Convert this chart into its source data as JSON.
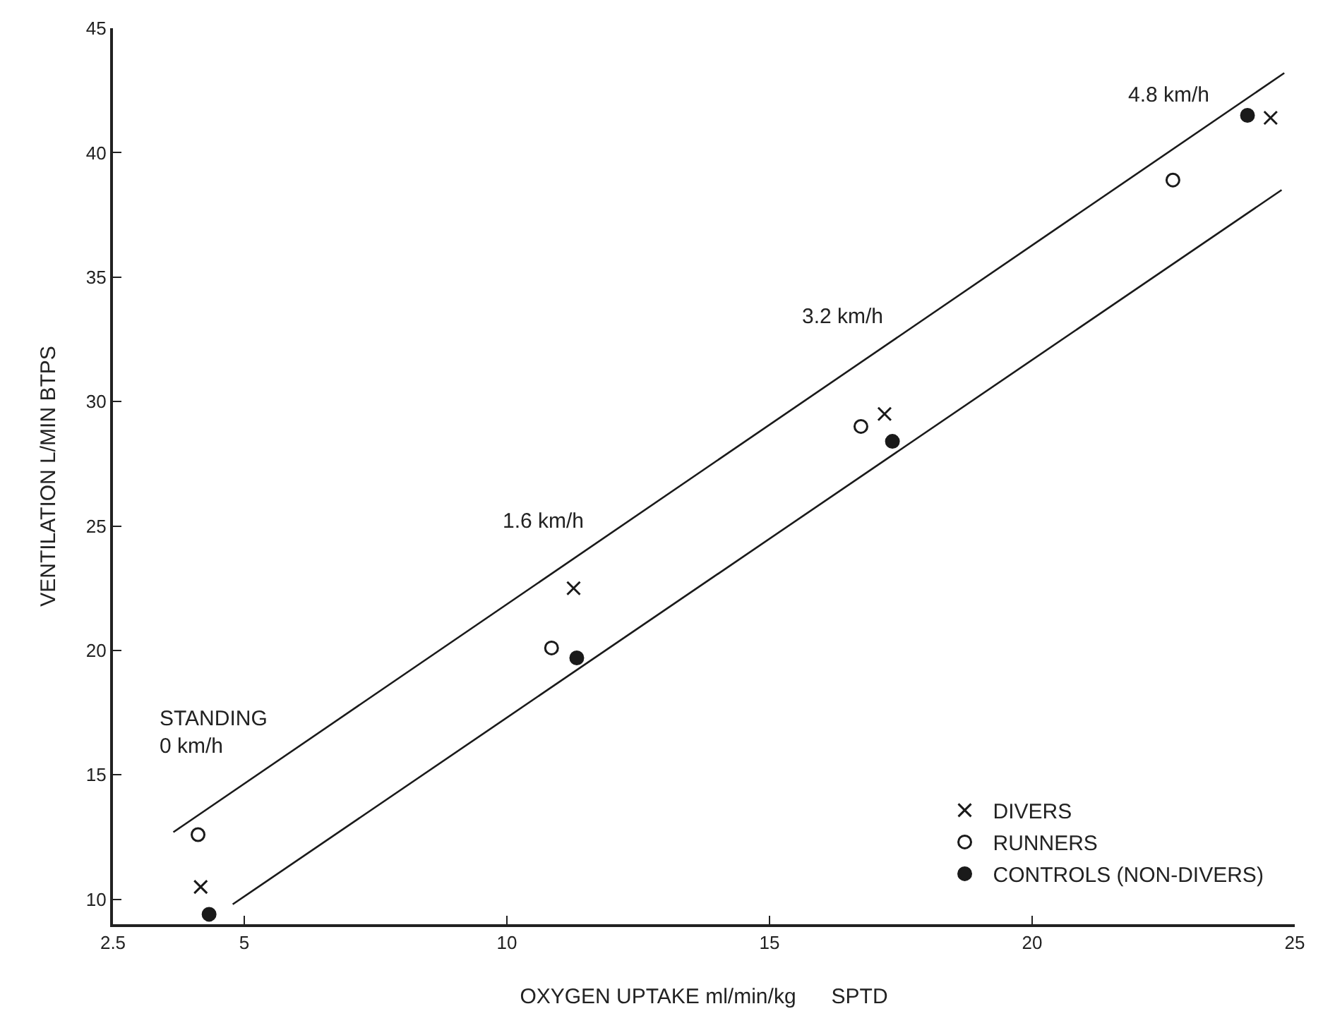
{
  "chart_data": {
    "type": "scatter",
    "xlabel": "OXYGEN UPTAKE ml/min/kg      SPTD",
    "ylabel": "VENTILATION L/MIN BTPS",
    "xlim": [
      2.5,
      25
    ],
    "xticks": [
      2.5,
      5,
      10,
      15,
      20,
      25
    ],
    "ylim": [
      9,
      45
    ],
    "yticks": [
      10,
      15,
      20,
      25,
      30,
      35,
      40,
      45
    ],
    "grid": false,
    "legend": "bottom right",
    "series": [
      {
        "name": "DIVERS",
        "marker": "cross",
        "color": "#1a1a1a",
        "x": [
          4.17,
          11.27,
          17.19,
          24.54
        ],
        "values": [
          10.5,
          22.5,
          29.5,
          41.4
        ]
      },
      {
        "name": "RUNNERS",
        "marker": "circle-open",
        "color": "#1a1a1a",
        "x": [
          4.12,
          10.85,
          16.74,
          22.68
        ],
        "values": [
          12.6,
          20.1,
          29.0,
          38.9
        ]
      },
      {
        "name": "CONTROLS (NON-DIVERS)",
        "marker": "circle",
        "color": "#1a1a1a",
        "x": [
          4.33,
          11.33,
          17.34,
          24.1
        ],
        "values": [
          9.4,
          19.7,
          28.4,
          41.5
        ]
      },
      {
        "type": "line",
        "color": "#1a1a1a",
        "x": [
          3.65,
          24.8
        ],
        "values": [
          12.7,
          43.2
        ]
      },
      {
        "type": "line",
        "color": "#1a1a1a",
        "x": [
          4.78,
          24.75
        ],
        "values": [
          9.8,
          38.5
        ]
      }
    ],
    "annotations": [
      {
        "text": "STANDING\n0 km/h",
        "x": 4.4,
        "y": 13.8
      },
      {
        "text": "1.6 km/h",
        "x": 10.7,
        "y": 22.9
      },
      {
        "text": "3.2 km/h",
        "x": 16.4,
        "y": 31.1
      },
      {
        "text": "4.8 km/h",
        "x": 22.6,
        "y": 40.0
      }
    ]
  }
}
